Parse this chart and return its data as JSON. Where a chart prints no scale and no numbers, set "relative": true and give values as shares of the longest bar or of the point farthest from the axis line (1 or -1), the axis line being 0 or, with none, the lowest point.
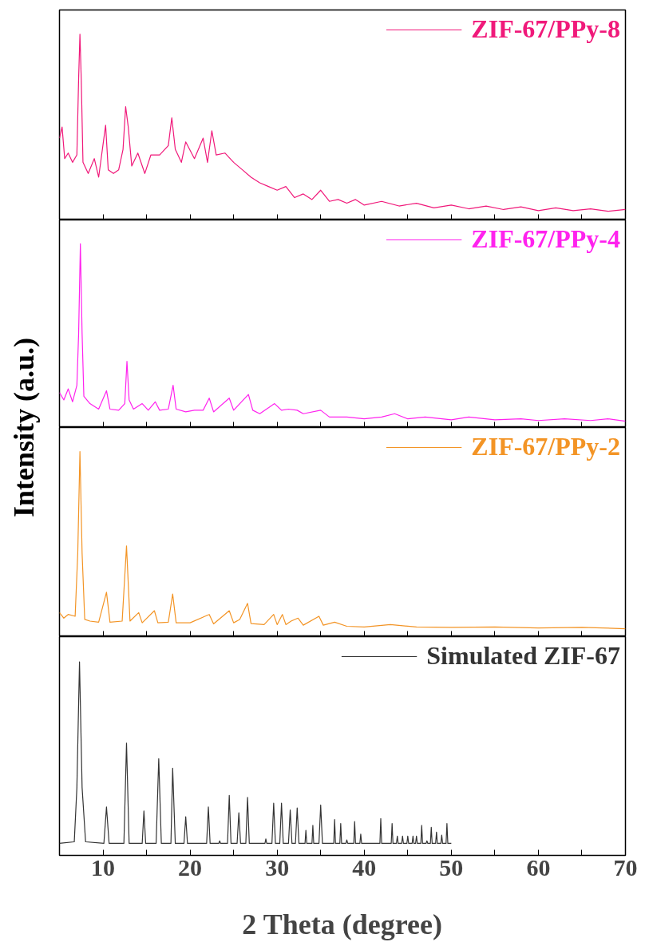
{
  "chart_data": [
    {
      "type": "line",
      "relative": true,
      "xlim": [
        5,
        70
      ],
      "xticks": [
        {
          "value": 10,
          "label": null
        },
        {
          "value": 15,
          "label": null
        },
        {
          "value": 20,
          "label": null
        },
        {
          "value": 25,
          "label": null
        },
        {
          "value": 30,
          "label": null
        },
        {
          "value": 35,
          "label": null
        },
        {
          "value": 40,
          "label": null
        },
        {
          "value": 45,
          "label": null
        },
        {
          "value": 50,
          "label": null
        },
        {
          "value": 55,
          "label": null
        },
        {
          "value": 60,
          "label": null
        },
        {
          "value": 65,
          "label": null
        }
      ],
      "tick_labels": false,
      "legend": "top right",
      "series": [
        {
          "name": "ZIF-67/PPy-8",
          "color": "#f0197a",
          "x": [
            5,
            5.3,
            5.6,
            6.0,
            6.5,
            7.0,
            7.2,
            7.35,
            7.5,
            7.7,
            8.3,
            9.0,
            9.5,
            10.3,
            10.6,
            11.2,
            11.8,
            12.3,
            12.6,
            12.9,
            13.3,
            14,
            14.8,
            15.5,
            16.5,
            17.5,
            17.9,
            18.3,
            19,
            19.5,
            20.5,
            21.5,
            22,
            22.5,
            23,
            24,
            25,
            26,
            27,
            28,
            29,
            30,
            31,
            32,
            33,
            34,
            35,
            36,
            37,
            38,
            39,
            40,
            42,
            44,
            46,
            48,
            50,
            52,
            54,
            56,
            58,
            60,
            62,
            64,
            66,
            68,
            70
          ],
          "values": [
            0.44,
            0.5,
            0.33,
            0.36,
            0.31,
            0.35,
            0.76,
            1.0,
            0.76,
            0.31,
            0.25,
            0.33,
            0.23,
            0.51,
            0.27,
            0.25,
            0.27,
            0.38,
            0.61,
            0.5,
            0.29,
            0.36,
            0.25,
            0.35,
            0.35,
            0.4,
            0.55,
            0.38,
            0.31,
            0.42,
            0.33,
            0.44,
            0.31,
            0.48,
            0.35,
            0.36,
            0.31,
            0.27,
            0.23,
            0.2,
            0.18,
            0.16,
            0.18,
            0.12,
            0.14,
            0.11,
            0.16,
            0.1,
            0.11,
            0.09,
            0.11,
            0.08,
            0.1,
            0.075,
            0.09,
            0.065,
            0.08,
            0.06,
            0.075,
            0.056,
            0.07,
            0.05,
            0.065,
            0.05,
            0.06,
            0.047,
            0.056
          ]
        }
      ]
    },
    {
      "type": "line",
      "relative": true,
      "ylabel": "Intensity (a.u.)",
      "xlim": [
        5,
        70
      ],
      "xticks": [
        {
          "value": 10,
          "label": null
        },
        {
          "value": 15,
          "label": null
        },
        {
          "value": 20,
          "label": null
        },
        {
          "value": 25,
          "label": null
        },
        {
          "value": 30,
          "label": null
        },
        {
          "value": 35,
          "label": null
        },
        {
          "value": 40,
          "label": null
        },
        {
          "value": 45,
          "label": null
        },
        {
          "value": 50,
          "label": null
        },
        {
          "value": 55,
          "label": null
        },
        {
          "value": 60,
          "label": null
        },
        {
          "value": 65,
          "label": null
        }
      ],
      "tick_labels": false,
      "legend": "top right",
      "series": [
        {
          "name": "ZIF-67/PPy-4",
          "color": "#ff22ee",
          "x": [
            5,
            5.5,
            6,
            6.5,
            7.0,
            7.2,
            7.4,
            7.6,
            7.8,
            8.5,
            9.5,
            10.4,
            10.8,
            11.8,
            12.5,
            12.75,
            13.0,
            13.5,
            14.5,
            15.2,
            16.0,
            16.5,
            17.5,
            18.05,
            18.4,
            19.5,
            20.5,
            21.5,
            22.2,
            22.7,
            24.5,
            25,
            26.7,
            27.2,
            28,
            29.7,
            30.5,
            31.3,
            32.3,
            33,
            35,
            36,
            38,
            40,
            42,
            43.5,
            45,
            47,
            50,
            52,
            55,
            58,
            60,
            63,
            66,
            68,
            70
          ],
          "values": [
            0.19,
            0.15,
            0.21,
            0.14,
            0.23,
            0.51,
            1.0,
            0.51,
            0.17,
            0.13,
            0.1,
            0.2,
            0.1,
            0.094,
            0.13,
            0.36,
            0.15,
            0.1,
            0.13,
            0.094,
            0.14,
            0.094,
            0.1,
            0.23,
            0.1,
            0.085,
            0.094,
            0.094,
            0.16,
            0.085,
            0.16,
            0.094,
            0.18,
            0.094,
            0.075,
            0.13,
            0.094,
            0.1,
            0.094,
            0.075,
            0.094,
            0.057,
            0.057,
            0.047,
            0.057,
            0.075,
            0.047,
            0.057,
            0.042,
            0.057,
            0.042,
            0.047,
            0.038,
            0.047,
            0.038,
            0.047,
            0.034
          ]
        }
      ]
    },
    {
      "type": "line",
      "relative": true,
      "xlim": [
        5,
        70
      ],
      "xticks": [
        {
          "value": 10,
          "label": null
        },
        {
          "value": 15,
          "label": null
        },
        {
          "value": 20,
          "label": null
        },
        {
          "value": 25,
          "label": null
        },
        {
          "value": 30,
          "label": null
        },
        {
          "value": 35,
          "label": null
        },
        {
          "value": 40,
          "label": null
        },
        {
          "value": 45,
          "label": null
        },
        {
          "value": 50,
          "label": null
        },
        {
          "value": 55,
          "label": null
        },
        {
          "value": 60,
          "label": null
        },
        {
          "value": 65,
          "label": null
        }
      ],
      "tick_labels": false,
      "legend": "top right",
      "series": [
        {
          "name": "ZIF-67/PPy-2",
          "color": "#f39425",
          "x": [
            5,
            5.5,
            6,
            6.8,
            7.1,
            7.35,
            7.6,
            7.9,
            8.5,
            9.5,
            10.4,
            10.8,
            12.2,
            12.7,
            13.1,
            14.1,
            14.5,
            15.9,
            16.3,
            17.5,
            18.0,
            18.4,
            20,
            22.2,
            22.7,
            24.5,
            25,
            25.7,
            26.6,
            27.0,
            28.5,
            29.6,
            30.0,
            30.6,
            31.0,
            31.6,
            32.4,
            33,
            34.8,
            35.3,
            36.6,
            38,
            40,
            43,
            46,
            50,
            55,
            60,
            65,
            70
          ],
          "values": [
            0.13,
            0.1,
            0.12,
            0.11,
            0.45,
            1.0,
            0.45,
            0.093,
            0.084,
            0.078,
            0.24,
            0.078,
            0.084,
            0.49,
            0.084,
            0.13,
            0.075,
            0.14,
            0.075,
            0.078,
            0.23,
            0.075,
            0.075,
            0.12,
            0.069,
            0.14,
            0.075,
            0.093,
            0.18,
            0.071,
            0.065,
            0.12,
            0.065,
            0.12,
            0.065,
            0.084,
            0.1,
            0.062,
            0.11,
            0.062,
            0.078,
            0.056,
            0.052,
            0.065,
            0.052,
            0.05,
            0.052,
            0.047,
            0.05,
            0.043
          ]
        }
      ]
    },
    {
      "type": "line",
      "relative": true,
      "xlabel": "2 Theta (degree)",
      "xlim": [
        5,
        70
      ],
      "xticks": [
        10,
        {
          "value": 15,
          "label": null
        },
        20,
        {
          "value": 25,
          "label": null
        },
        30,
        {
          "value": 35,
          "label": null
        },
        40,
        {
          "value": 45,
          "label": null
        },
        50,
        {
          "value": 55,
          "label": null
        },
        60,
        {
          "value": 65,
          "label": null
        },
        70
      ],
      "tick_labels": "x",
      "legend": "top right",
      "series": [
        {
          "name": "Simulated ZIF-67",
          "color": "#333333",
          "x": [
            5,
            6.7,
            7.0,
            7.3,
            7.6,
            8.0,
            10.1,
            10.4,
            10.7,
            12.4,
            12.7,
            13.0,
            14.5,
            14.7,
            14.9,
            16.1,
            16.4,
            16.7,
            17.8,
            18.0,
            18.3,
            19.3,
            19.5,
            19.7,
            21.9,
            22.1,
            22.3,
            23.3,
            23.4,
            23.5,
            24.3,
            24.5,
            24.7,
            25.4,
            25.6,
            25.8,
            26.4,
            26.6,
            26.8,
            28.6,
            28.7,
            28.8,
            29.4,
            29.6,
            29.8,
            30.3,
            30.5,
            30.7,
            31.3,
            31.5,
            31.7,
            32.1,
            32.3,
            32.5,
            33.2,
            33.3,
            33.4,
            34.0,
            34.1,
            34.2,
            34.8,
            35.0,
            35.2,
            36.5,
            36.6,
            36.7,
            37.2,
            37.3,
            37.4,
            37.9,
            38.0,
            38.1,
            38.8,
            38.9,
            39.0,
            39.5,
            39.6,
            39.7,
            41.8,
            41.9,
            42.0,
            43.1,
            43.2,
            43.3,
            43.7,
            43.8,
            43.9,
            44.3,
            44.4,
            44.5,
            44.9,
            45.0,
            45.1,
            45.5,
            45.6,
            45.7,
            45.9,
            46.0,
            46.1,
            46.5,
            46.6,
            46.7,
            47.1,
            47.2,
            47.3,
            47.6,
            47.7,
            47.8,
            48.2,
            48.3,
            48.4,
            48.8,
            48.9,
            49.0,
            49.4,
            49.5,
            49.6,
            50.0
          ],
          "values": [
            0.062,
            0.07,
            0.35,
            1.0,
            0.35,
            0.07,
            0.062,
            0.25,
            0.062,
            0.062,
            0.58,
            0.062,
            0.062,
            0.23,
            0.062,
            0.062,
            0.5,
            0.062,
            0.062,
            0.45,
            0.062,
            0.062,
            0.2,
            0.062,
            0.062,
            0.25,
            0.062,
            0.062,
            0.075,
            0.062,
            0.062,
            0.31,
            0.062,
            0.062,
            0.22,
            0.062,
            0.062,
            0.3,
            0.062,
            0.062,
            0.085,
            0.062,
            0.062,
            0.27,
            0.062,
            0.062,
            0.27,
            0.062,
            0.062,
            0.235,
            0.062,
            0.062,
            0.245,
            0.062,
            0.062,
            0.13,
            0.062,
            0.062,
            0.155,
            0.062,
            0.062,
            0.26,
            0.062,
            0.062,
            0.185,
            0.062,
            0.062,
            0.165,
            0.062,
            0.062,
            0.08,
            0.062,
            0.062,
            0.175,
            0.062,
            0.062,
            0.11,
            0.062,
            0.062,
            0.19,
            0.062,
            0.062,
            0.165,
            0.062,
            0.062,
            0.1,
            0.062,
            0.062,
            0.1,
            0.062,
            0.062,
            0.1,
            0.062,
            0.062,
            0.1,
            0.062,
            0.062,
            0.1,
            0.062,
            0.062,
            0.155,
            0.062,
            0.062,
            0.075,
            0.062,
            0.062,
            0.145,
            0.062,
            0.062,
            0.12,
            0.062,
            0.062,
            0.105,
            0.062,
            0.062,
            0.165,
            0.062,
            0.062
          ]
        }
      ]
    }
  ]
}
